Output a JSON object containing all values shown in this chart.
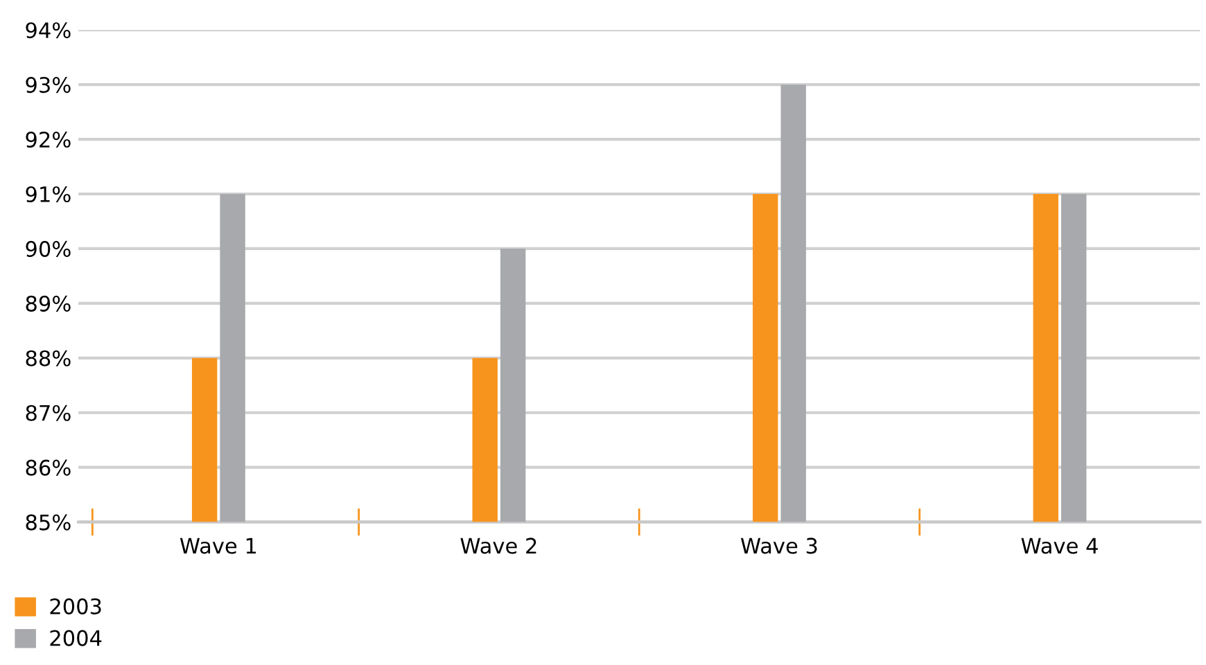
{
  "chart_data": {
    "type": "bar",
    "categories": [
      "Wave 1",
      "Wave 2",
      "Wave 3",
      "Wave 4"
    ],
    "series": [
      {
        "name": "2003",
        "color": "#f7941d",
        "values": [
          88,
          88,
          91,
          91
        ]
      },
      {
        "name": "2004",
        "color": "#a7a9ac",
        "values": [
          91,
          90,
          93,
          91
        ]
      }
    ],
    "ylim": [
      85,
      94
    ],
    "yticks": [
      {
        "value": 85,
        "label": "85%"
      },
      {
        "value": 86,
        "label": "86%"
      },
      {
        "value": 87,
        "label": "87%"
      },
      {
        "value": 88,
        "label": "88%"
      },
      {
        "value": 89,
        "label": "89%"
      },
      {
        "value": 90,
        "label": "90%"
      },
      {
        "value": 91,
        "label": "91%"
      },
      {
        "value": 92,
        "label": "92%"
      },
      {
        "value": 93,
        "label": "93%"
      },
      {
        "value": 94,
        "label": "94%"
      }
    ],
    "grid": "y",
    "legend": "bottom left"
  }
}
